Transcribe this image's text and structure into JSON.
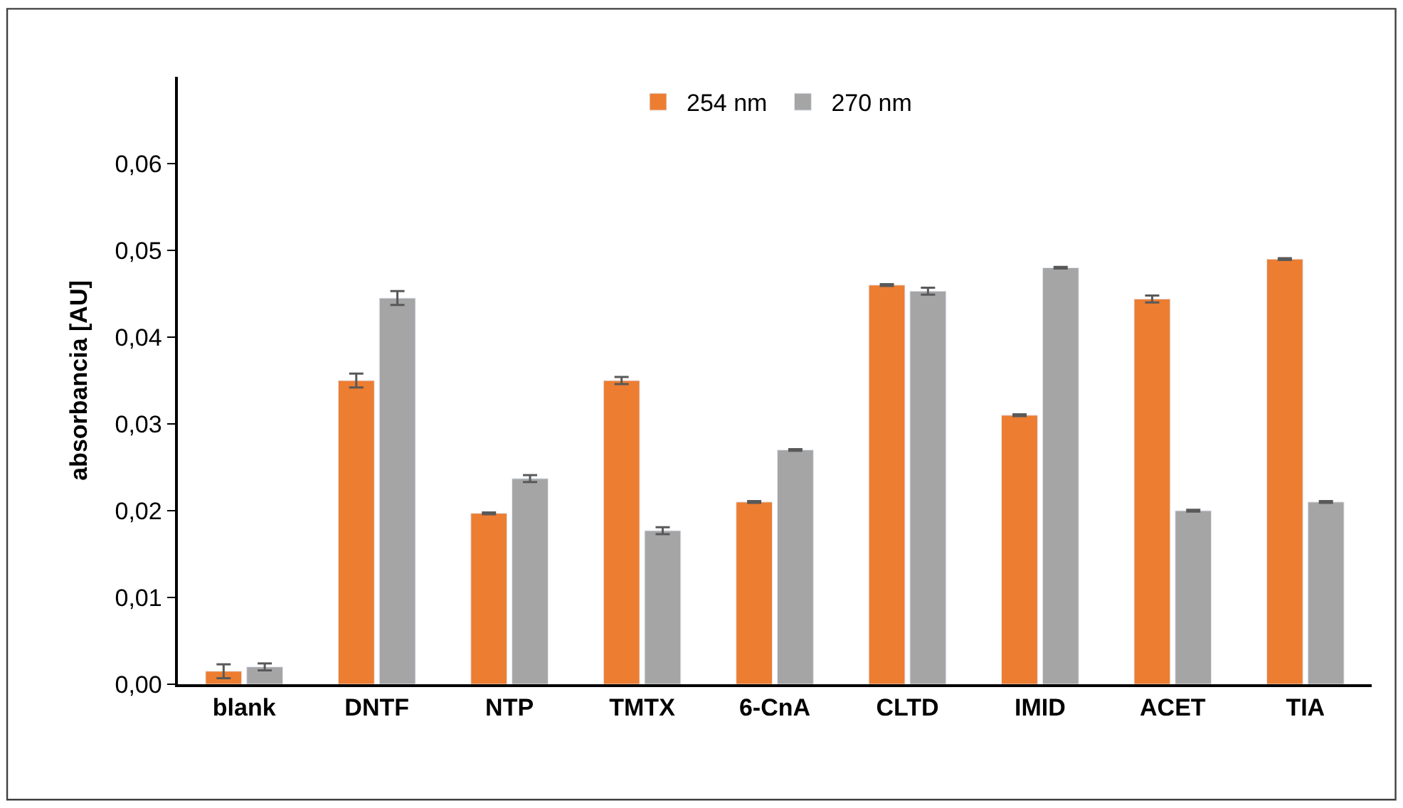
{
  "chart_data": {
    "type": "bar",
    "ylabel": "absorbancia [AU]",
    "categories": [
      "blank",
      "DNTF",
      "NTP",
      "TMTX",
      "6-CnA",
      "CLTD",
      "IMID",
      "ACET",
      "TIA"
    ],
    "series": [
      {
        "name": "254 nm",
        "color": "#ed7d31",
        "values": [
          0.0015,
          0.035,
          0.0197,
          0.035,
          0.021,
          0.046,
          0.031,
          0.0444,
          0.049
        ],
        "errors": [
          0.0008,
          0.0008,
          0.0001,
          0.0004,
          0.0001,
          0.0001,
          0.0001,
          0.0004,
          0.0001
        ]
      },
      {
        "name": "270 nm",
        "color": "#a5a5a5",
        "values": [
          0.002,
          0.0445,
          0.0237,
          0.0177,
          0.027,
          0.0453,
          0.048,
          0.02,
          0.021
        ],
        "errors": [
          0.0004,
          0.0008,
          0.0004,
          0.0004,
          0.0001,
          0.0004,
          0.0001,
          0.0001,
          0.0001
        ]
      }
    ],
    "ylim": [
      0,
      0.07
    ],
    "yticks": [
      {
        "value": 0,
        "label": "0,00"
      },
      {
        "value": 0.01,
        "label": "0,01"
      },
      {
        "value": 0.02,
        "label": "0,02"
      },
      {
        "value": 0.03,
        "label": "0,03"
      },
      {
        "value": 0.04,
        "label": "0,04"
      },
      {
        "value": 0.05,
        "label": "0,05"
      },
      {
        "value": 0.06,
        "label": "0,06"
      }
    ],
    "legend": "top"
  }
}
